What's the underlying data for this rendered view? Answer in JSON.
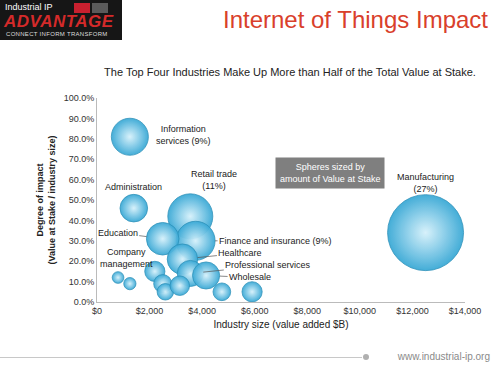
{
  "header": {
    "logo_top": "Industrial IP",
    "logo_main": "ADVANTAGE",
    "logo_tagline": "CONNECT INFORM TRANSFORM",
    "title": "Internet of Things Impact"
  },
  "footer": "www.industrial-ip.org",
  "chart_data": {
    "type": "scatter",
    "marker": "circle",
    "title": "The Top Four Industries Make Up More than Half of the Total Value at Stake.",
    "x_label": "Industry size (value added $B)",
    "y_label": "Degree of impact (Value at Stake / industry size)",
    "annotations": [
      "Spheres sized by amount of Value at Stake"
    ],
    "x": [
      1250,
      1400,
      3550,
      12500,
      3750,
      2500,
      3250,
      3550,
      4150,
      800,
      1250,
      2200,
      2500,
      2600,
      3150,
      4750,
      5900
    ],
    "values": [
      81,
      46,
      42,
      34,
      30,
      31,
      21,
      14,
      13,
      12,
      9,
      15,
      9,
      5,
      8,
      5,
      5
    ],
    "sizes": [
      1010,
      560,
      1490,
      4250,
      1120,
      780,
      680,
      500,
      540,
      100,
      110,
      300,
      240,
      200,
      280,
      230,
      300
    ],
    "labels": [
      "Information services (9%)",
      "Administration",
      "Retail trade (11%)",
      "Manufacturing (27%)",
      "Finance and insurance (9%)",
      "Education",
      "Healthcare",
      "Professional services",
      "Wholesale",
      "Company management",
      null,
      null,
      null,
      null,
      null,
      null,
      null
    ],
    "color": "#3aa9d6",
    "xlim": [
      0,
      14000
    ],
    "xticks": [
      {
        "value": 0,
        "label": "$0"
      },
      {
        "value": 2000,
        "label": "$2,000"
      },
      {
        "value": 4000,
        "label": "$4,000"
      },
      {
        "value": 6000,
        "label": "$6,000"
      },
      {
        "value": 8000,
        "label": "$8,000"
      },
      {
        "value": 10000,
        "label": "$10,000"
      },
      {
        "value": 12000,
        "label": "$12,000"
      },
      {
        "value": 14000,
        "label": "$14,000"
      }
    ],
    "ylim": [
      0,
      100
    ],
    "yticks": [
      {
        "value": 0,
        "label": "0.0%"
      },
      {
        "value": 10,
        "label": "10.0%"
      },
      {
        "value": 20,
        "label": "20.0%"
      },
      {
        "value": 30,
        "label": "30.0%"
      },
      {
        "value": 40,
        "label": "40.0%"
      },
      {
        "value": 50,
        "label": "50.0%"
      },
      {
        "value": 60,
        "label": "60.0%"
      },
      {
        "value": 70,
        "label": "70.0%"
      },
      {
        "value": 80,
        "label": "80.0%"
      },
      {
        "value": 90,
        "label": "90.0%"
      },
      {
        "value": 100,
        "label": "100.0%"
      }
    ],
    "grid": false
  }
}
